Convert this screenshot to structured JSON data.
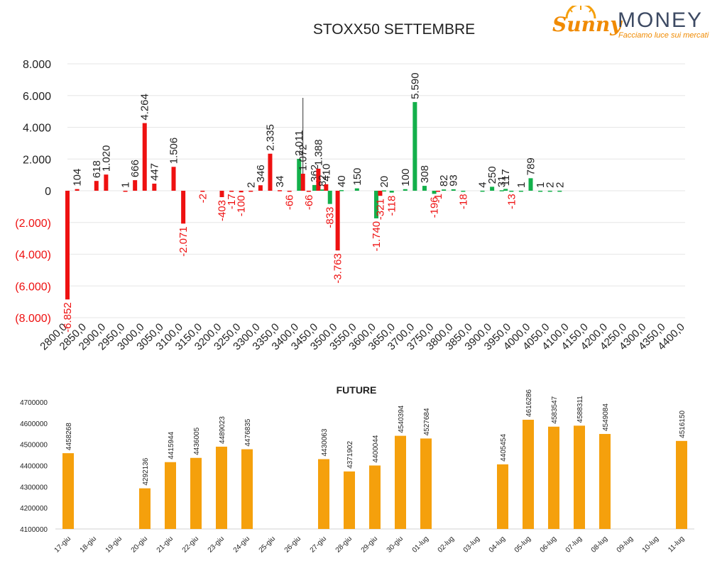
{
  "logo": {
    "brand_script": "Sunny",
    "brand_word": "MONEY",
    "tagline": "Facciamo luce sui mercati"
  },
  "chart_data": [
    {
      "type": "bar",
      "title": "STOXX50 SETTEMBRE",
      "categories": [
        "2800,0",
        "2850,0",
        "2900,0",
        "2950,0",
        "3000,0",
        "3050,0",
        "3100,0",
        "3150,0",
        "3200,0",
        "3250,0",
        "3300,0",
        "3350,0",
        "3400,0",
        "3450,0",
        "3500,0",
        "3550,0",
        "3600,0",
        "3650,0",
        "3700,0",
        "3750,0",
        "3800,0",
        "3850,0",
        "3900,0",
        "3950,0",
        "4000,0",
        "4050,0",
        "4100,0",
        "4150,0",
        "4200,0",
        "4250,0",
        "4300,0",
        "4350,0",
        "4400,0"
      ],
      "ylim": [
        -8000,
        8000
      ],
      "yticks": [
        8000,
        6000,
        4000,
        2000,
        0,
        -2000,
        -4000,
        -6000,
        -8000
      ],
      "ytick_labels": [
        "8.000",
        "6.000",
        "4.000",
        "2.000",
        "0",
        "(2.000)",
        "(4.000)",
        "(6.000)",
        "(8.000)"
      ],
      "colors": {
        "red": "#ee1111",
        "green": "#13b04b",
        "label_neg": "#ee1111",
        "label_pos": "#222222"
      },
      "bars": [
        {
          "x": 2800,
          "value": -6852,
          "label": "-6.852",
          "color": "red"
        },
        {
          "x": 2825,
          "value": 104,
          "label": "104",
          "color": "red"
        },
        {
          "x": 2875,
          "value": 618,
          "label": "618",
          "color": "red"
        },
        {
          "x": 2900,
          "value": 1020,
          "label": "1.020",
          "color": "red"
        },
        {
          "x": 2950,
          "value": 1,
          "label": "1",
          "color": "red"
        },
        {
          "x": 2975,
          "value": 666,
          "label": "666",
          "color": "red"
        },
        {
          "x": 3000,
          "value": 4264,
          "label": "4.264",
          "color": "red"
        },
        {
          "x": 3025,
          "value": 447,
          "label": "447",
          "color": "red"
        },
        {
          "x": 3075,
          "value": 1506,
          "label": "1.506",
          "color": "red"
        },
        {
          "x": 3100,
          "value": -2071,
          "label": "-2.071",
          "color": "red"
        },
        {
          "x": 3150,
          "value": -2,
          "label": "-2",
          "color": "red"
        },
        {
          "x": 3200,
          "value": -403,
          "label": "-403",
          "color": "red"
        },
        {
          "x": 3225,
          "value": -17,
          "label": "-17",
          "color": "red"
        },
        {
          "x": 3250,
          "value": -100,
          "label": "-100",
          "color": "red"
        },
        {
          "x": 3275,
          "value": 2,
          "label": "2",
          "color": "red"
        },
        {
          "x": 3300,
          "value": 346,
          "label": "346",
          "color": "red"
        },
        {
          "x": 3325,
          "value": 2335,
          "label": "2.335",
          "color": "red"
        },
        {
          "x": 3350,
          "value": 34,
          "label": "34",
          "color": "red"
        },
        {
          "x": 3375,
          "value": -66,
          "label": "-66",
          "color": "red"
        },
        {
          "x": 3400,
          "value": 2011,
          "label": "2.011",
          "color": "green"
        },
        {
          "x": 3410,
          "value": 1072,
          "label": "1.072",
          "color": "red"
        },
        {
          "x": 3425,
          "value": -66,
          "label": "-66",
          "color": "red"
        },
        {
          "x": 3440,
          "value": 362,
          "label": "362",
          "color": "green"
        },
        {
          "x": 3450,
          "value": 1388,
          "label": "1.388",
          "color": "red"
        },
        {
          "x": 3460,
          "value": 82,
          "label": "82",
          "color": "green"
        },
        {
          "x": 3470,
          "value": 410,
          "label": "410",
          "color": "red"
        },
        {
          "x": 3480,
          "value": -833,
          "label": "-833",
          "color": "green"
        },
        {
          "x": 3500,
          "value": -3763,
          "label": "-3.763",
          "color": "red"
        },
        {
          "x": 3510,
          "value": 40,
          "label": "40",
          "color": "green"
        },
        {
          "x": 3550,
          "value": 150,
          "label": "150",
          "color": "green"
        },
        {
          "x": 3600,
          "value": -1740,
          "label": "-1.740",
          "color": "green"
        },
        {
          "x": 3610,
          "value": -321,
          "label": "-321",
          "color": "red"
        },
        {
          "x": 3620,
          "value": 20,
          "label": "20",
          "color": "green"
        },
        {
          "x": 3640,
          "value": -118,
          "label": "-118",
          "color": "green"
        },
        {
          "x": 3675,
          "value": 100,
          "label": "100",
          "color": "green"
        },
        {
          "x": 3700,
          "value": 5590,
          "label": "5.590",
          "color": "green"
        },
        {
          "x": 3725,
          "value": 308,
          "label": "308",
          "color": "green"
        },
        {
          "x": 3750,
          "value": -196,
          "label": "-196",
          "color": "green"
        },
        {
          "x": 3760,
          "value": -1,
          "label": "-1",
          "color": "red"
        },
        {
          "x": 3775,
          "value": 82,
          "label": "82",
          "color": "green"
        },
        {
          "x": 3800,
          "value": 93,
          "label": "93",
          "color": "green"
        },
        {
          "x": 3825,
          "value": -18,
          "label": "-18",
          "color": "green"
        },
        {
          "x": 3875,
          "value": 4,
          "label": "4",
          "color": "green"
        },
        {
          "x": 3900,
          "value": 250,
          "label": "250",
          "color": "green"
        },
        {
          "x": 3925,
          "value": 31,
          "label": "31",
          "color": "green"
        },
        {
          "x": 3935,
          "value": 117,
          "label": "117",
          "color": "green"
        },
        {
          "x": 3950,
          "value": -13,
          "label": "-13",
          "color": "green"
        },
        {
          "x": 3975,
          "value": 1,
          "label": "1",
          "color": "green"
        },
        {
          "x": 4000,
          "value": 789,
          "label": "789",
          "color": "green"
        },
        {
          "x": 4025,
          "value": 1,
          "label": "1",
          "color": "green"
        },
        {
          "x": 4050,
          "value": 2,
          "label": "2",
          "color": "green"
        },
        {
          "x": 4075,
          "value": 2,
          "label": "2",
          "color": "green"
        }
      ]
    },
    {
      "type": "bar",
      "title": "FUTURE",
      "color": "#f5a00c",
      "ylim": [
        4100000,
        4700000
      ],
      "yticks": [
        4700000,
        4600000,
        4500000,
        4400000,
        4300000,
        4200000,
        4100000
      ],
      "categories": [
        "17-giu",
        "18-giu",
        "19-giu",
        "20-giu",
        "21-giu",
        "22-giu",
        "23-giu",
        "24-giu",
        "25-giu",
        "26-giu",
        "27-giu",
        "28-giu",
        "29-giu",
        "30-giu",
        "01-lug",
        "02-lug",
        "03-lug",
        "04-lug",
        "05-lug",
        "06-lug",
        "07-lug",
        "08-lug",
        "09-lug",
        "10-lug",
        "11-lug"
      ],
      "values": [
        4458268,
        null,
        null,
        4292136,
        4415944,
        4436005,
        4489023,
        4476835,
        null,
        null,
        4430063,
        4371902,
        4400044,
        4540394,
        4527684,
        null,
        null,
        4405454,
        4616286,
        4583547,
        4588311,
        4549084,
        null,
        null,
        4516150
      ]
    }
  ]
}
